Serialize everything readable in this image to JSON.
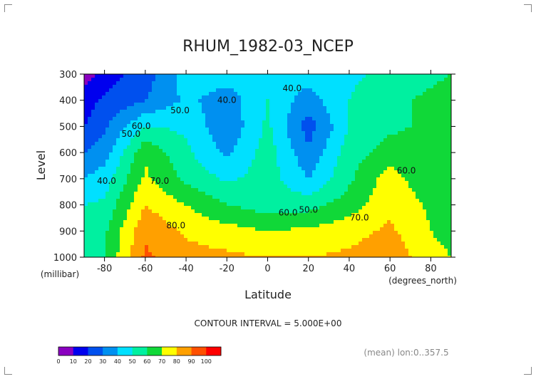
{
  "chart_data": {
    "type": "contour",
    "title": "RHUM_1982-03_NCEP",
    "xlabel": "Latitude",
    "x_units": "(degrees_north)",
    "ylabel": "Level",
    "y_units": "(millibar)",
    "xlim": [
      -90,
      90
    ],
    "ylim": [
      1000,
      300
    ],
    "x_ticks": [
      "-80",
      "-60",
      "-40",
      "-20",
      "0",
      "20",
      "40",
      "60",
      "80"
    ],
    "y_ticks": [
      "300",
      "400",
      "500",
      "600",
      "700",
      "800",
      "900",
      "1000"
    ],
    "contour_interval_text": "CONTOUR INTERVAL = 5.000E+00",
    "footer_note": "(mean) lon:0..357.5",
    "contour_labels": [
      {
        "text": "40.0",
        "lat": -20,
        "level": 410
      },
      {
        "text": "40.0",
        "lat": 12,
        "level": 365
      },
      {
        "text": "50.0",
        "lat": -43,
        "level": 450
      },
      {
        "text": "50.0",
        "lat": -67,
        "level": 540
      },
      {
        "text": "60.0",
        "lat": -62,
        "level": 510
      },
      {
        "text": "40.0",
        "lat": -79,
        "level": 720
      },
      {
        "text": "70.0",
        "lat": -53,
        "level": 720
      },
      {
        "text": "80.0",
        "lat": -45,
        "level": 890
      },
      {
        "text": "60.0",
        "lat": 10,
        "level": 840
      },
      {
        "text": "50.0",
        "lat": 20,
        "level": 830
      },
      {
        "text": "70.0",
        "lat": 45,
        "level": 860
      },
      {
        "text": "60.0",
        "lat": 68,
        "level": 680
      }
    ],
    "colorbar": {
      "ticks": [
        "0",
        "10",
        "20",
        "30",
        "40",
        "50",
        "60",
        "70",
        "80",
        "90",
        "100"
      ],
      "colors": [
        "#8a00c0",
        "#0000ee",
        "#0050ee",
        "#0090f0",
        "#00e0ff",
        "#00f0a0",
        "#10d838",
        "#ffff00",
        "#ffa000",
        "#ff5000",
        "#ff0000"
      ]
    },
    "grid_lat": [
      -90,
      -80,
      -60,
      -40,
      -20,
      0,
      20,
      40,
      60,
      80,
      90
    ],
    "grid_level": [
      300,
      400,
      500,
      600,
      700,
      800,
      900,
      1000
    ],
    "grid_values": [
      [
        5,
        15,
        25,
        45,
        45,
        40,
        45,
        48,
        52,
        58,
        60
      ],
      [
        15,
        22,
        30,
        42,
        35,
        50,
        35,
        50,
        58,
        62,
        64
      ],
      [
        20,
        28,
        50,
        48,
        32,
        52,
        25,
        50,
        58,
        62,
        62
      ],
      [
        30,
        35,
        68,
        52,
        38,
        55,
        32,
        55,
        65,
        60,
        60
      ],
      [
        40,
        45,
        72,
        58,
        48,
        55,
        40,
        58,
        75,
        62,
        60
      ],
      [
        50,
        52,
        80,
        70,
        60,
        55,
        56,
        65,
        78,
        68,
        65
      ],
      [
        55,
        58,
        88,
        78,
        74,
        70,
        72,
        76,
        82,
        70,
        68
      ],
      [
        55,
        60,
        92,
        84,
        82,
        80,
        80,
        82,
        88,
        72,
        70
      ]
    ]
  }
}
